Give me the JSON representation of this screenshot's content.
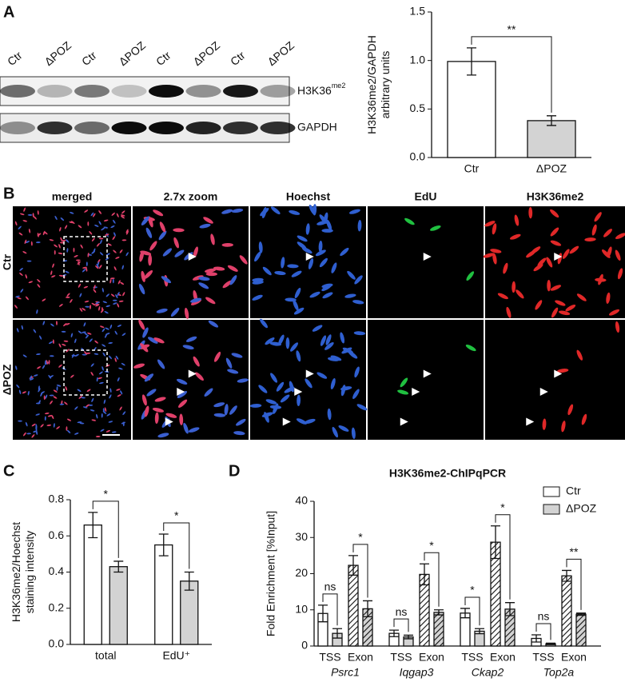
{
  "panel_labels": [
    "A",
    "B",
    "C",
    "D"
  ],
  "blot": {
    "lanes": [
      "Ctr",
      "ΔPOZ",
      "Ctr",
      "ΔPOZ",
      "Ctr",
      "ΔPOZ",
      "Ctr",
      "ΔPOZ"
    ],
    "rows": [
      {
        "label": "H3K36",
        "superscript": "me2"
      },
      {
        "label": "GAPDH"
      }
    ]
  },
  "microscopy": {
    "columns": [
      "merged",
      "2.7x zoom",
      "Hoechst",
      "EdU",
      "H3K36me2"
    ],
    "rows": [
      "Ctr",
      "ΔPOZ"
    ]
  },
  "chart_data": [
    {
      "type": "bar",
      "y_label": [
        "H3K36me2/GAPDH",
        "arbitrary units"
      ],
      "categories": [
        "Ctr",
        "ΔPOZ"
      ],
      "series": [
        {
          "colors": [
            "#ffffff",
            "#d3d3d3"
          ],
          "values": [
            0.99,
            0.38
          ],
          "errors": [
            0.14,
            0.05
          ]
        }
      ],
      "ylim": [
        0,
        1.5
      ],
      "yticks": [
        {
          "value": 0,
          "label": "0.0"
        },
        0.5,
        {
          "value": 1,
          "label": "1.0"
        },
        1.5
      ],
      "significance": [
        "**"
      ]
    },
    {
      "type": "bar",
      "y_label": [
        "H3K36me2/Hoechst",
        "staining intensity"
      ],
      "categories": [
        "total",
        "EdU⁺"
      ],
      "series": [
        {
          "color": "#ffffff",
          "values": [
            0.66,
            0.55
          ],
          "errors": [
            0.07,
            0.06
          ]
        },
        {
          "color": "#d3d3d3",
          "values": [
            0.43,
            0.35
          ],
          "errors": [
            0.03,
            0.05
          ]
        }
      ],
      "ylim": [
        0,
        0.8
      ],
      "yticks": [
        {
          "value": 0,
          "label": "0.0"
        },
        0.2,
        0.4,
        0.6,
        0.8
      ],
      "significance": [
        "*",
        "*"
      ]
    },
    {
      "type": "bar",
      "title": "H3K36me2-ChIPqPCR",
      "y_label": [
        "Fold Enrichment [%Input]"
      ],
      "categories": [
        "TSS",
        "Exon",
        "TSS",
        "Exon",
        "TSS",
        "Exon",
        "TSS",
        "Exon"
      ],
      "groups": [
        "Psrc1",
        "Iqgap3",
        "Ckap2",
        "Top2a"
      ],
      "series": [
        {
          "name": "Ctr",
          "color": "#ffffff",
          "values": [
            9,
            22.3,
            3.5,
            19.8,
            9.1,
            28.7,
            2.1,
            19.4
          ],
          "errors": [
            2.3,
            2.7,
            0.9,
            2.9,
            1.3,
            4.5,
            1,
            1.5
          ]
        },
        {
          "name": "ΔPOZ",
          "color": "#d3d3d3",
          "values": [
            3.5,
            10.3,
            2.5,
            9.3,
            4.1,
            10.2,
            0.6,
            8.8
          ],
          "errors": [
            1.3,
            2.2,
            0.5,
            0.7,
            0.7,
            1.8,
            0.2,
            0.3
          ]
        }
      ],
      "ylim": [
        0,
        40
      ],
      "yticks": [
        0,
        10,
        20,
        30,
        40
      ],
      "significance": [
        "ns",
        "*",
        "ns",
        "*",
        "*",
        "*",
        "ns",
        "**"
      ],
      "legend": "upper right"
    }
  ]
}
